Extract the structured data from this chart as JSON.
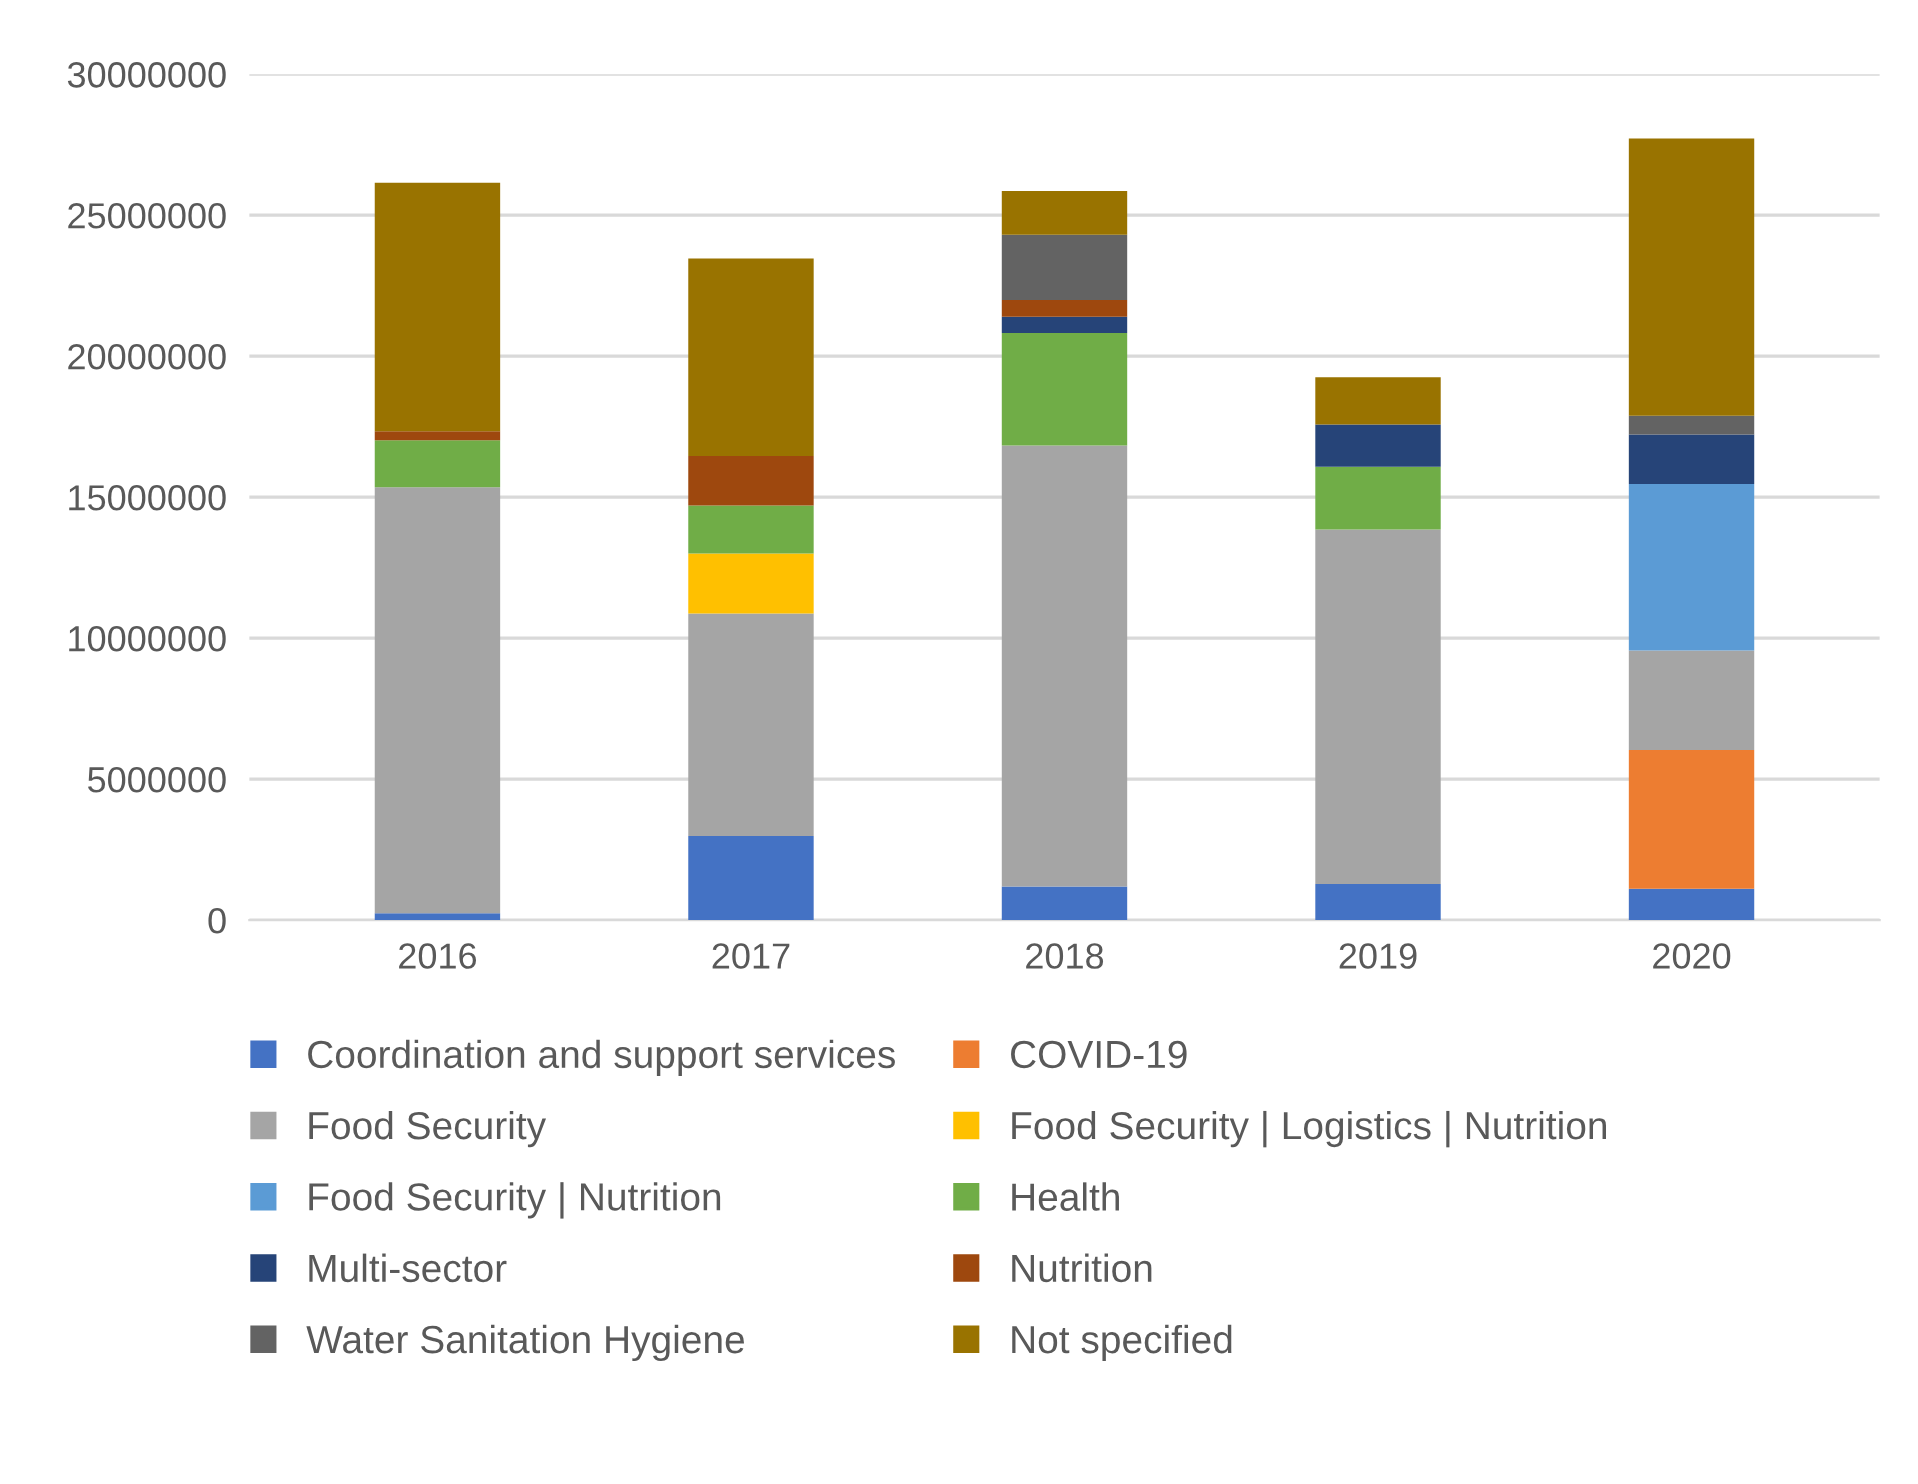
{
  "chart_data": {
    "type": "bar",
    "stacked": true,
    "categories": [
      "2016",
      "2017",
      "2018",
      "2019",
      "2020"
    ],
    "series": [
      {
        "name": "Coordination and support services",
        "color": "#4472c4",
        "values": [
          240000,
          2980000,
          1190000,
          1280000,
          1110000
        ]
      },
      {
        "name": "COVID-19",
        "color": "#ed7d31",
        "values": [
          0,
          0,
          0,
          0,
          4920000
        ]
      },
      {
        "name": "Food Security",
        "color": "#a5a5a5",
        "values": [
          15110000,
          7890000,
          15640000,
          12570000,
          3530000
        ]
      },
      {
        "name": "Food Security | Logistics | Nutrition",
        "color": "#ffc000",
        "values": [
          0,
          2130000,
          0,
          0,
          0
        ]
      },
      {
        "name": "Food Security | Nutrition",
        "color": "#5b9bd5",
        "values": [
          0,
          0,
          0,
          0,
          5910000
        ]
      },
      {
        "name": "Health",
        "color": "#70ad47",
        "values": [
          1670000,
          1700000,
          3990000,
          2230000,
          0
        ]
      },
      {
        "name": "Multi-sector",
        "color": "#264478",
        "values": [
          0,
          0,
          580000,
          1500000,
          1750000
        ]
      },
      {
        "name": "Nutrition",
        "color": "#9e480e",
        "values": [
          320000,
          1760000,
          590000,
          0,
          0
        ]
      },
      {
        "name": "Water Sanitation Hygiene",
        "color": "#636363",
        "values": [
          0,
          0,
          2320000,
          0,
          670000
        ]
      },
      {
        "name": "Not specified",
        "color": "#997300",
        "values": [
          8810000,
          7000000,
          1550000,
          1670000,
          9830000
        ]
      }
    ],
    "ylim": [
      0,
      30000000
    ],
    "yticks": [
      0,
      5000000,
      10000000,
      15000000,
      20000000,
      25000000,
      30000000
    ],
    "grid": "y",
    "legend": "bottom"
  }
}
